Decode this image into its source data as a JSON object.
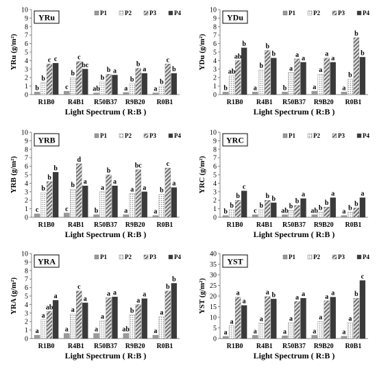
{
  "figure": {
    "xlabel": "Light Spectrum ( R:B )",
    "legend": [
      "P1",
      "P2",
      "P3",
      "P4"
    ],
    "series_styles": {
      "P1": {
        "fill": "#9a9a9a",
        "pattern": "solid-gray"
      },
      "P2": {
        "fill": "#d8d8d8",
        "pattern": "dotted"
      },
      "P3": {
        "fill": "#bdbdbd",
        "pattern": "diagonal-hatch"
      },
      "P4": {
        "fill": "#3a3a3a",
        "pattern": "solid-dark"
      }
    },
    "colors": {
      "axis": "#808080",
      "text": "#000000",
      "panel_border": "#000000"
    }
  },
  "chart_data": [
    {
      "type": "bar",
      "title": "YRu",
      "ylabel": "YRu (g/m²)",
      "ylim": [
        0,
        10
      ],
      "yticks": [
        0,
        1,
        2,
        3,
        4,
        5,
        6,
        7,
        8,
        9,
        10
      ],
      "categories": [
        "R1B0",
        "R4B1",
        "R50B37",
        "R9B20",
        "R0B1"
      ],
      "series": [
        {
          "name": "P1",
          "values": [
            0.3,
            0.4,
            0.2,
            0.25,
            0.2
          ]
        },
        {
          "name": "P2",
          "values": [
            1.4,
            2.0,
            1.5,
            1.3,
            1.0
          ]
        },
        {
          "name": "P3",
          "values": [
            3.6,
            3.9,
            2.4,
            3.1,
            3.6
          ]
        },
        {
          "name": "P4",
          "values": [
            3.7,
            3.0,
            2.3,
            2.5,
            2.5
          ]
        }
      ],
      "letters": [
        [
          "b",
          "b",
          "c",
          "c"
        ],
        [
          "c",
          "b",
          "c",
          "bc"
        ],
        [
          "ab",
          "b",
          "b",
          "a"
        ],
        [
          "a",
          "b",
          "b",
          "a"
        ],
        [
          "a",
          "b",
          "c",
          "b"
        ]
      ]
    },
    {
      "type": "bar",
      "title": "YDu",
      "ylabel": "YDu (g/m²)",
      "ylim": [
        0,
        10
      ],
      "yticks": [
        0,
        1,
        2,
        3,
        4,
        5,
        6,
        7,
        8,
        9,
        10
      ],
      "categories": [
        "R1B0",
        "R4B1",
        "R50B37",
        "R9B20",
        "R0B1"
      ],
      "series": [
        {
          "name": "P1",
          "values": [
            0.3,
            0.3,
            0.3,
            0.4,
            0.3
          ]
        },
        {
          "name": "P2",
          "values": [
            2.2,
            2.9,
            2.6,
            2.4,
            1.8
          ]
        },
        {
          "name": "P3",
          "values": [
            4.0,
            5.2,
            4.2,
            4.3,
            6.7
          ]
        },
        {
          "name": "P4",
          "values": [
            5.5,
            4.3,
            3.8,
            3.8,
            4.4
          ]
        }
      ],
      "letters": [
        [
          "b",
          "ab",
          "ab",
          "b"
        ],
        [
          "a",
          "b",
          "b",
          "b"
        ],
        [
          "b",
          "a",
          "a",
          "a"
        ],
        [
          "a",
          "a",
          "a",
          "a"
        ],
        [
          "a",
          "b",
          "b",
          "b"
        ]
      ]
    },
    {
      "type": "bar",
      "title": "YRB",
      "ylabel": "YRB (g/m²)",
      "ylim": [
        0,
        10
      ],
      "yticks": [
        0,
        1,
        2,
        3,
        4,
        5,
        6,
        7,
        8,
        9,
        10
      ],
      "categories": [
        "R1B0",
        "R4B1",
        "R50B37",
        "R9B20",
        "R0B1"
      ],
      "series": [
        {
          "name": "P1",
          "values": [
            0.4,
            0.5,
            0.3,
            0.3,
            0.2
          ]
        },
        {
          "name": "P2",
          "values": [
            2.9,
            3.3,
            3.0,
            2.8,
            2.7
          ]
        },
        {
          "name": "P3",
          "values": [
            4.2,
            6.3,
            5.0,
            5.6,
            5.8
          ]
        },
        {
          "name": "P4",
          "values": [
            5.3,
            3.7,
            3.7,
            3.0,
            3.5
          ]
        }
      ],
      "letters": [
        [
          "c",
          "b",
          "b",
          "b"
        ],
        [
          "c",
          "b",
          "d",
          "a"
        ],
        [
          "b",
          "a",
          "b",
          "a"
        ],
        [
          "a",
          "a",
          "bc",
          "a"
        ],
        [
          "a",
          "b",
          "c",
          "a"
        ]
      ]
    },
    {
      "type": "bar",
      "title": "YRC",
      "ylabel": "YRC (g/m²)",
      "ylim": [
        0,
        10
      ],
      "yticks": [
        0,
        1,
        2,
        3,
        4,
        5,
        6,
        7,
        8,
        9,
        10
      ],
      "categories": [
        "R1B0",
        "R4B1",
        "R50B37",
        "R9B20",
        "R0B1"
      ],
      "series": [
        {
          "name": "P1",
          "values": [
            0.2,
            0.3,
            0.3,
            0.3,
            0.2
          ]
        },
        {
          "name": "P2",
          "values": [
            0.9,
            0.9,
            0.8,
            0.6,
            0.6
          ]
        },
        {
          "name": "P3",
          "values": [
            2.0,
            2.0,
            1.4,
            1.2,
            1.1
          ]
        },
        {
          "name": "P4",
          "values": [
            3.1,
            1.7,
            2.2,
            2.3,
            2.3
          ]
        }
      ],
      "letters": [
        [
          "b",
          "b",
          "b",
          "c"
        ],
        [
          "c",
          "b",
          "b",
          "b"
        ],
        [
          "ab",
          "b",
          "b",
          "a"
        ],
        [
          "ab",
          "b",
          "b",
          "a"
        ],
        [
          "a",
          "b",
          "b",
          "a"
        ]
      ]
    },
    {
      "type": "bar",
      "title": "YRA",
      "ylabel": "YRA (g/m²)",
      "ylim": [
        0,
        10
      ],
      "yticks": [
        0,
        1,
        2,
        3,
        4,
        5,
        6,
        7,
        8,
        9,
        10
      ],
      "categories": [
        "R1B0",
        "R4B1",
        "R50B37",
        "R9B20",
        "R0B1"
      ],
      "series": [
        {
          "name": "P1",
          "values": [
            0.4,
            0.6,
            0.6,
            0.6,
            0.4
          ]
        },
        {
          "name": "P2",
          "values": [
            2.2,
            2.9,
            2.1,
            2.8,
            2.6
          ]
        },
        {
          "name": "P3",
          "values": [
            3.2,
            5.6,
            4.8,
            4.0,
            5.6
          ]
        },
        {
          "name": "P4",
          "values": [
            4.5,
            4.2,
            4.9,
            4.7,
            6.5
          ]
        }
      ],
      "letters": [
        [
          "a",
          "a",
          "ab",
          "a"
        ],
        [
          "a",
          "a",
          "c",
          "a"
        ],
        [
          "a",
          "a",
          "a",
          "a"
        ],
        [
          "ab",
          "b",
          "a",
          "a"
        ],
        [
          "a",
          "a",
          "b",
          "b"
        ]
      ]
    },
    {
      "type": "bar",
      "title": "YST",
      "ylabel": "YST (g/m²)",
      "ylim": [
        0,
        40
      ],
      "yticks": [
        0,
        5,
        10,
        15,
        20,
        25,
        30,
        35,
        40
      ],
      "categories": [
        "R1B0",
        "R4B1",
        "R50B37",
        "R9B20",
        "R0B1"
      ],
      "series": [
        {
          "name": "P1",
          "values": [
            1.0,
            1.5,
            1.3,
            1.5,
            1.1
          ]
        },
        {
          "name": "P2",
          "values": [
            6.0,
            7.3,
            7.5,
            8.0,
            7.5
          ]
        },
        {
          "name": "P3",
          "values": [
            19.5,
            19.8,
            17.5,
            17.8,
            19.0
          ]
        },
        {
          "name": "P4",
          "values": [
            15.6,
            18.6,
            19.0,
            19.5,
            27.3
          ]
        }
      ],
      "letters": [
        [
          "a",
          "a",
          "a",
          "a"
        ],
        [
          "a",
          "a",
          "a",
          "b"
        ],
        [
          "a",
          "a",
          "a",
          "a"
        ],
        [
          "a",
          "a",
          "a",
          "a"
        ],
        [
          "a",
          "a",
          "b",
          "c"
        ]
      ]
    }
  ]
}
